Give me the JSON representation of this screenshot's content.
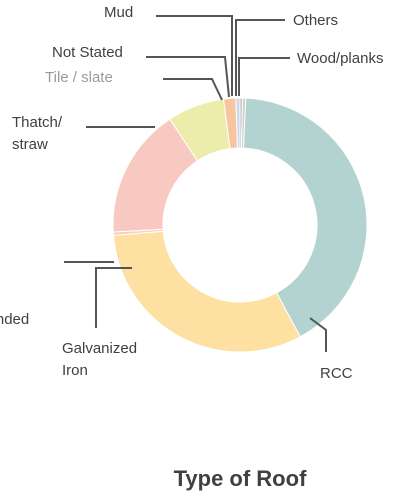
{
  "chart_data": {
    "type": "pie",
    "variant": "donut",
    "title": "Type of Roof",
    "slices": [
      {
        "label": "Others",
        "value": 0.3,
        "color": "#b6b6b6"
      },
      {
        "label": "Wood/planks",
        "value": 0.4,
        "color": "#cfcfcf"
      },
      {
        "label": "RCC",
        "value": 40,
        "color": "#b3d3d1"
      },
      {
        "label": "Galvanized Iron",
        "value": 30.5,
        "color": "#fde0a2"
      },
      {
        "label": "Bricks/Unbonded Stone",
        "value": 0.4,
        "color": "#f7d0b8"
      },
      {
        "label": "Thatch/ straw",
        "value": 16,
        "color": "#f8c9c0"
      },
      {
        "label": "Tile / slate",
        "value": 7,
        "color": "#ecedaa"
      },
      {
        "label": "Not Stated",
        "value": 1.5,
        "color": "#f9c59e"
      },
      {
        "label": "Mud",
        "value": 0.5,
        "color": "#cdd9e8"
      }
    ],
    "legend": "none"
  }
}
